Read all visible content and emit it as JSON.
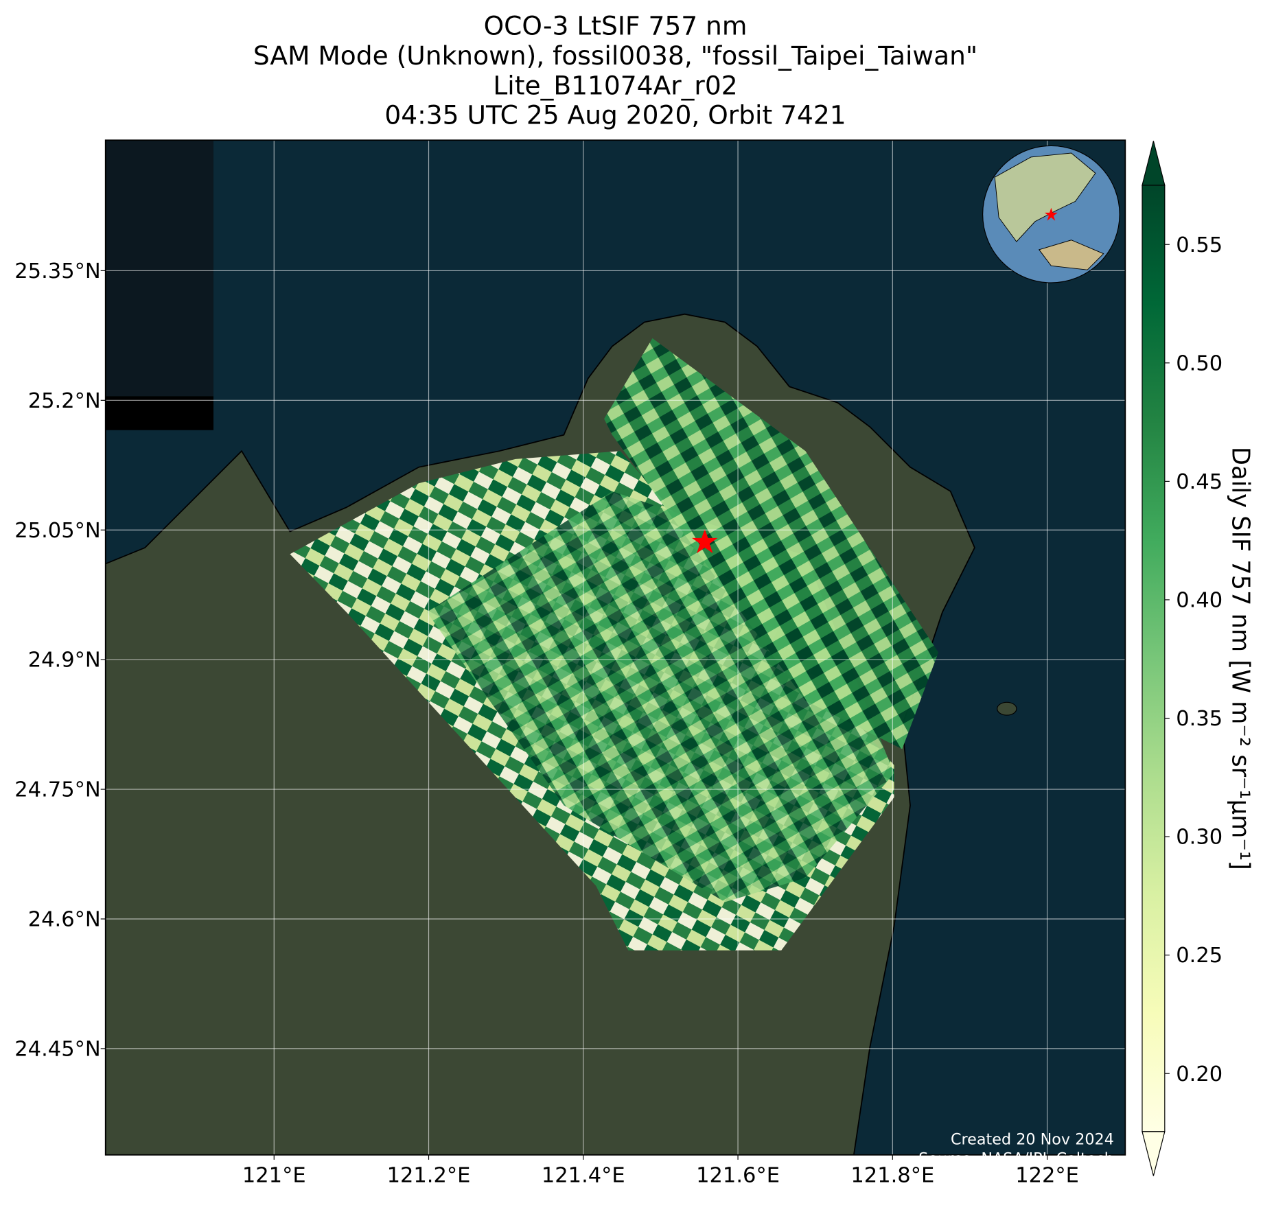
{
  "chart_data": {
    "type": "map",
    "title": [
      "OCO-3 LtSIF 757 nm",
      "SAM Mode (Unknown), fossil0038, \"fossil_Taipei_Taiwan\"",
      "Lite_B11074Ar_r02",
      "04:35 UTC 25 Aug 2020, Orbit 7421"
    ],
    "xlim": [
      120.782,
      122.101
    ],
    "ylim": [
      24.327,
      25.501
    ],
    "xticks": [
      {
        "value": 121,
        "label": "121°E"
      },
      {
        "value": 121.2,
        "label": "121.2°E"
      },
      {
        "value": 121.4,
        "label": "121.4°E"
      },
      {
        "value": 121.6,
        "label": "121.6°E"
      },
      {
        "value": 121.8,
        "label": "121.8°E"
      },
      {
        "value": 122,
        "label": "122°E"
      }
    ],
    "yticks": [
      {
        "value": 24.45,
        "label": "24.45°N"
      },
      {
        "value": 24.6,
        "label": "24.6°N"
      },
      {
        "value": 24.75,
        "label": "24.75°N"
      },
      {
        "value": 24.9,
        "label": "24.9°N"
      },
      {
        "value": 25.05,
        "label": "25.05°N"
      },
      {
        "value": 25.2,
        "label": "25.2°N"
      },
      {
        "value": 25.35,
        "label": "25.35°N"
      }
    ],
    "grid": true,
    "colorbar": {
      "label": "Daily SIF 757 nm [W m⁻² sr⁻¹μm⁻¹]",
      "lim": [
        0.1755,
        0.575
      ],
      "ticks": [
        {
          "value": 0.2,
          "label": "0.20"
        },
        0.25,
        {
          "value": 0.3,
          "label": "0.30"
        },
        0.35,
        {
          "value": 0.4,
          "label": "0.40"
        },
        0.45,
        {
          "value": 0.5,
          "label": "0.50"
        },
        0.55
      ],
      "extend": "both",
      "colors": [
        "#ffffe5",
        "#f7fcb9",
        "#d9f0a3",
        "#addd8e",
        "#78c679",
        "#41ab5d",
        "#238443",
        "#006837",
        "#004529"
      ]
    },
    "annotations": [
      "Created 20 Nov 2024",
      "Source: NASA/JPL-Caltech"
    ]
  }
}
